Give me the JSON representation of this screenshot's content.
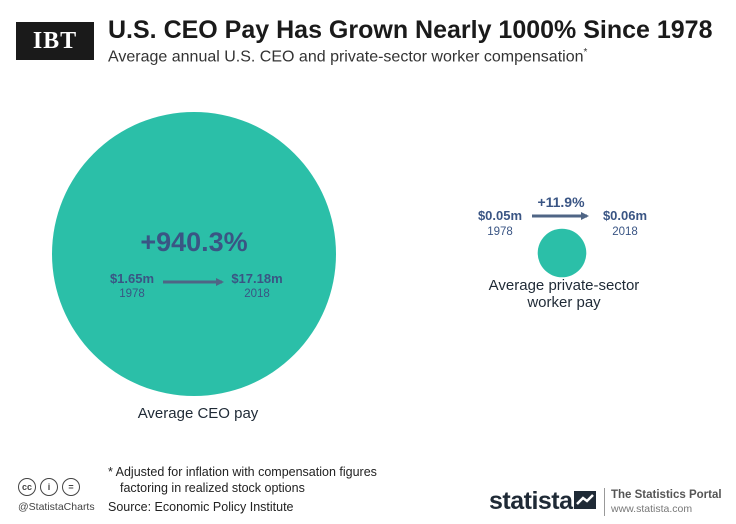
{
  "header": {
    "logo_text": "IBT",
    "title": "U.S. CEO Pay Has Grown Nearly 1000% Since 1978",
    "subtitle": "Average annual U.S. CEO and private-sector worker compensation",
    "subtitle_marker": "*"
  },
  "chart_data": {
    "type": "bubble",
    "title": "U.S. CEO Pay Has Grown Nearly 1000% Since 1978",
    "subtitle": "Average annual U.S. CEO and private-sector worker compensation",
    "unit": "$m",
    "series": [
      {
        "name": "Average CEO pay",
        "start_year": "1978",
        "start_value": 1.65,
        "start_label": "$1.65m",
        "end_year": "2018",
        "end_value": 17.18,
        "end_label": "$17.18m",
        "change_label": "+940.3%",
        "color": "#2bbfa8"
      },
      {
        "name_line1": "Average private-sector",
        "name_line2": "worker pay",
        "start_year": "1978",
        "start_value": 0.05,
        "start_label": "$0.05m",
        "end_year": "2018",
        "end_value": 0.06,
        "end_label": "$0.06m",
        "change_label": "+11.9%",
        "color": "#2bbfa8"
      }
    ],
    "text_color": "#3a5584",
    "arrow_color": "#4f6585"
  },
  "footer": {
    "footnote_line1": "* Adjusted for inflation with compensation figures",
    "footnote_line2": "factoring in realized stock options",
    "source": "Source: Economic Policy Institute",
    "cc_icons": [
      "cc",
      "i",
      "="
    ],
    "handle": "@StatistaCharts",
    "brand": "statista",
    "portal_title": "The Statistics Portal",
    "portal_url": "www.statista.com"
  }
}
